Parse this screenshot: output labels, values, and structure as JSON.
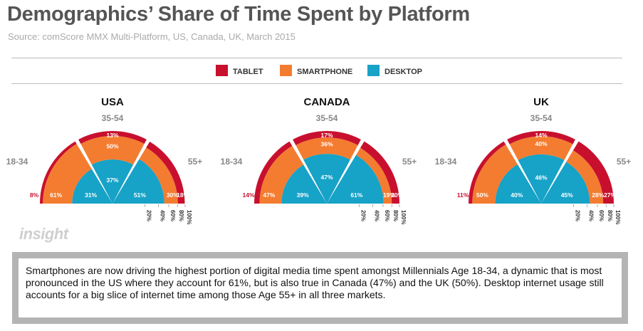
{
  "title": "Demographics’ Share of Time Spent by Platform",
  "subtitle": "Source: comScore MMX Multi-Platform, US, Canada, UK, March 2015",
  "watermark": "insight",
  "note": "Smartphones are now driving the highest portion of digital media time spent amongst Millennials Age 18-34, a dynamic that is most pronounced in the US where they account for 61%, but is also true in Canada (47%) and the UK (50%). Desktop internet usage still accounts for a big slice of internet time among those Age 55+ in all three markets.",
  "colors": {
    "tablet": "#c8102e",
    "smartphone": "#f47c30",
    "desktop": "#17a2c7",
    "title": "#555555"
  },
  "chart_data": {
    "type": "radial-stacked-bar",
    "legend": [
      {
        "key": "tablet",
        "label": "TABLET"
      },
      {
        "key": "smartphone",
        "label": "SMARTPHONE"
      },
      {
        "key": "desktop",
        "label": "DESKTOP"
      }
    ],
    "legend_placement": "top-center",
    "age_groups": [
      "18-34",
      "35-54",
      "55+"
    ],
    "radial_ticks": [
      "20%",
      "40%",
      "60%",
      "80%",
      "100%"
    ],
    "panels": [
      {
        "title": "USA",
        "groups": [
          {
            "age": "18-34",
            "desktop": 31,
            "smartphone": 61,
            "tablet": 8
          },
          {
            "age": "35-54",
            "desktop": 37,
            "smartphone": 50,
            "tablet": 13
          },
          {
            "age": "55+",
            "desktop": 51,
            "smartphone": 30,
            "tablet": 18
          }
        ]
      },
      {
        "title": "CANADA",
        "groups": [
          {
            "age": "18-34",
            "desktop": 39,
            "smartphone": 47,
            "tablet": 14
          },
          {
            "age": "35-54",
            "desktop": 47,
            "smartphone": 36,
            "tablet": 17
          },
          {
            "age": "55+",
            "desktop": 61,
            "smartphone": 19,
            "tablet": 20
          }
        ]
      },
      {
        "title": "UK",
        "groups": [
          {
            "age": "18-34",
            "desktop": 40,
            "smartphone": 50,
            "tablet": 11
          },
          {
            "age": "35-54",
            "desktop": 46,
            "smartphone": 40,
            "tablet": 14
          },
          {
            "age": "55+",
            "desktop": 45,
            "smartphone": 28,
            "tablet": 27
          }
        ]
      }
    ]
  }
}
